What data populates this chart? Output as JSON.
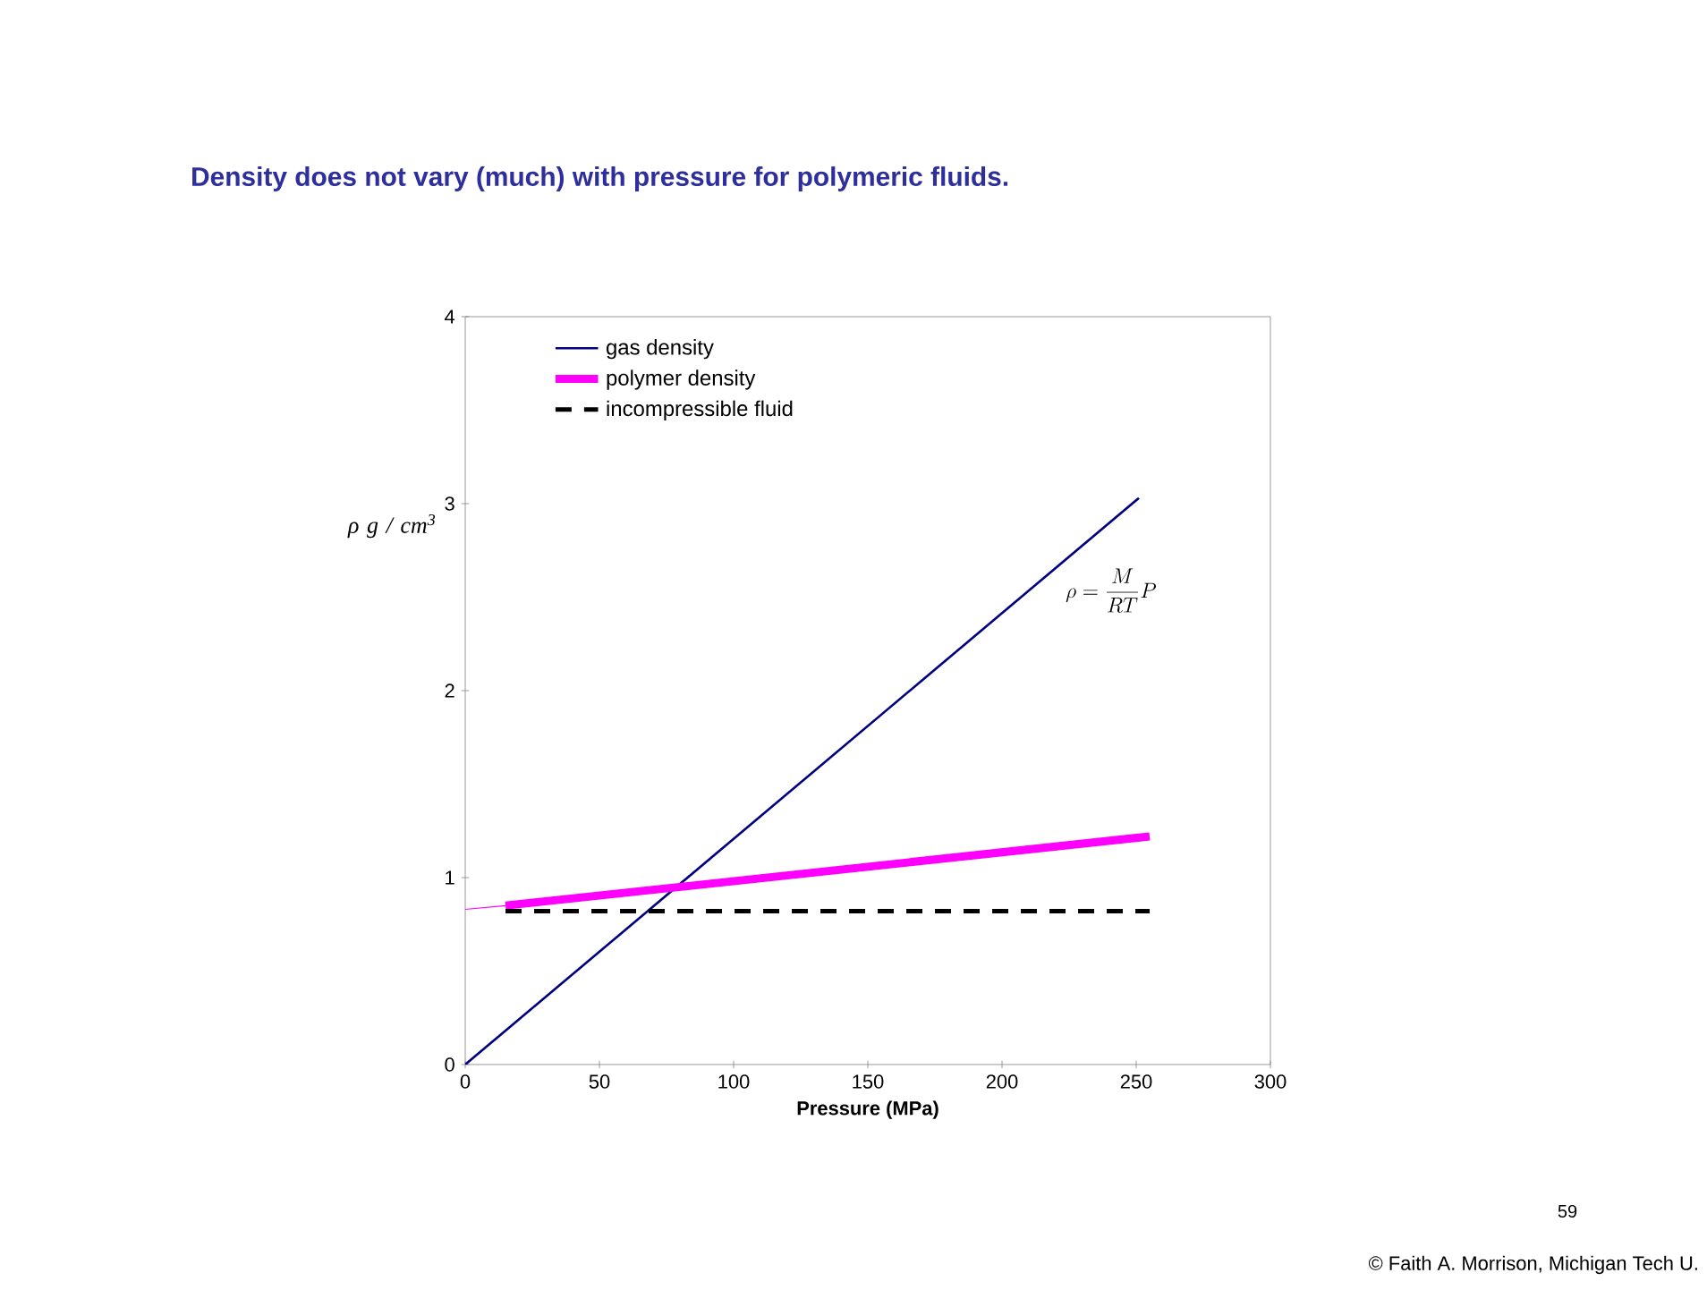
{
  "chart_data": {
    "type": "line",
    "title": "Density does not vary (much) with pressure for polymeric fluids.",
    "xlabel": "Pressure (MPa)",
    "ylabel": "ρ g / cm$^{3}$",
    "xlim": [
      0,
      300
    ],
    "xticks": [
      0,
      50,
      100,
      150,
      200,
      250,
      300
    ],
    "ylim": [
      0,
      4
    ],
    "yticks": [
      0,
      1,
      2,
      3,
      4
    ],
    "series": [
      {
        "name": "gas density",
        "color": "#000080",
        "x": [
          0,
          251
        ],
        "values": [
          0,
          3.03
        ]
      },
      {
        "name": "polymer density",
        "color": "#ff00ff",
        "x": [
          15,
          255
        ],
        "values": [
          0.85,
          1.22
        ]
      },
      {
        "name": "incompressible fluid",
        "color": "#000000",
        "x": [
          15,
          255
        ],
        "values": [
          0.82,
          0.82
        ],
        "line_style": "dashed"
      },
      {
        "color": "#ff00ff",
        "x": [
          0,
          15
        ],
        "values": [
          0.83,
          0.85
        ]
      }
    ],
    "legend": "top left",
    "grid": false,
    "annotations": [
      "\\rho = \\frac{M}{RT}P",
      "59",
      "© Faith A. Morrison, Michigan Tech U."
    ]
  }
}
